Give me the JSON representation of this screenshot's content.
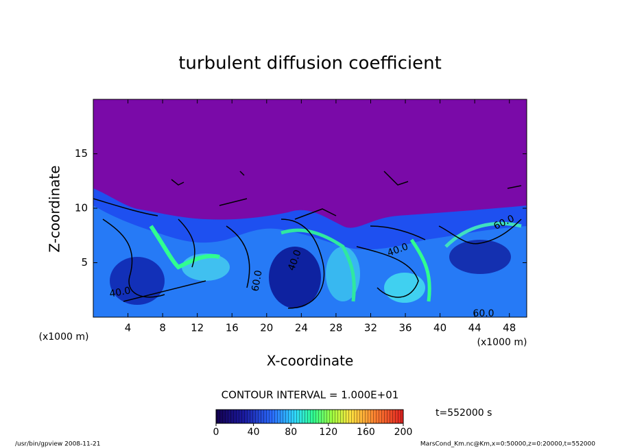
{
  "chart_data": {
    "type": "contour",
    "title": "turbulent diffusion coefficient",
    "x_label": "X-coordinate",
    "y_label": "Z-coordinate",
    "x_unit": "(x1000 m)",
    "y_unit": "(x1000 m)",
    "xlim": [
      0,
      50
    ],
    "xticks": [
      4,
      8,
      12,
      16,
      20,
      24,
      28,
      32,
      36,
      40,
      44,
      48
    ],
    "ylim": [
      0,
      20
    ],
    "yticks": [
      5,
      10,
      15
    ],
    "contour_interval": "CONTOUR INTERVAL = 1.000E+01",
    "contour_labels": [
      "40.0",
      "60.0",
      "40.0",
      "40.0",
      "60.0",
      "60.0"
    ],
    "colorbar": {
      "lim": [
        0,
        200
      ],
      "ticks": [
        0,
        40,
        80,
        120,
        160,
        200
      ]
    },
    "time_label": "t=552000 s",
    "footer_left": "/usr/bin/gpview   2008-11-21",
    "footer_right": "MarsCond_Km.nc@Km,x=0:50000,z=0:20000,t=552000"
  }
}
